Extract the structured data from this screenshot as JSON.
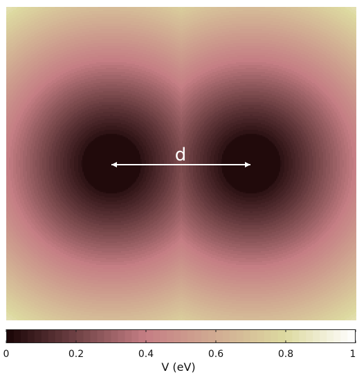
{
  "chart_data": {
    "type": "heatmap",
    "title": "",
    "annotation": "d",
    "colorbar": {
      "label": "V (eV)",
      "range": [
        0,
        1
      ],
      "ticks": [
        0,
        0.2,
        0.4,
        0.6,
        0.8,
        1
      ],
      "tick_labels": [
        "0",
        "0.2",
        "0.4",
        "0.6",
        "0.8",
        "1"
      ]
    },
    "field": {
      "description_of_marks": "two circular wells with V ≈ 0 inside, potential rising radially outward",
      "well_centers_x_fraction": [
        0.3,
        0.7
      ],
      "well_center_y_fraction": 0.5
    },
    "colors": {
      "low": "#1a0506",
      "mid": "#c57e84",
      "high_mid": "#ddd9a0",
      "high": "#ffffff"
    }
  }
}
